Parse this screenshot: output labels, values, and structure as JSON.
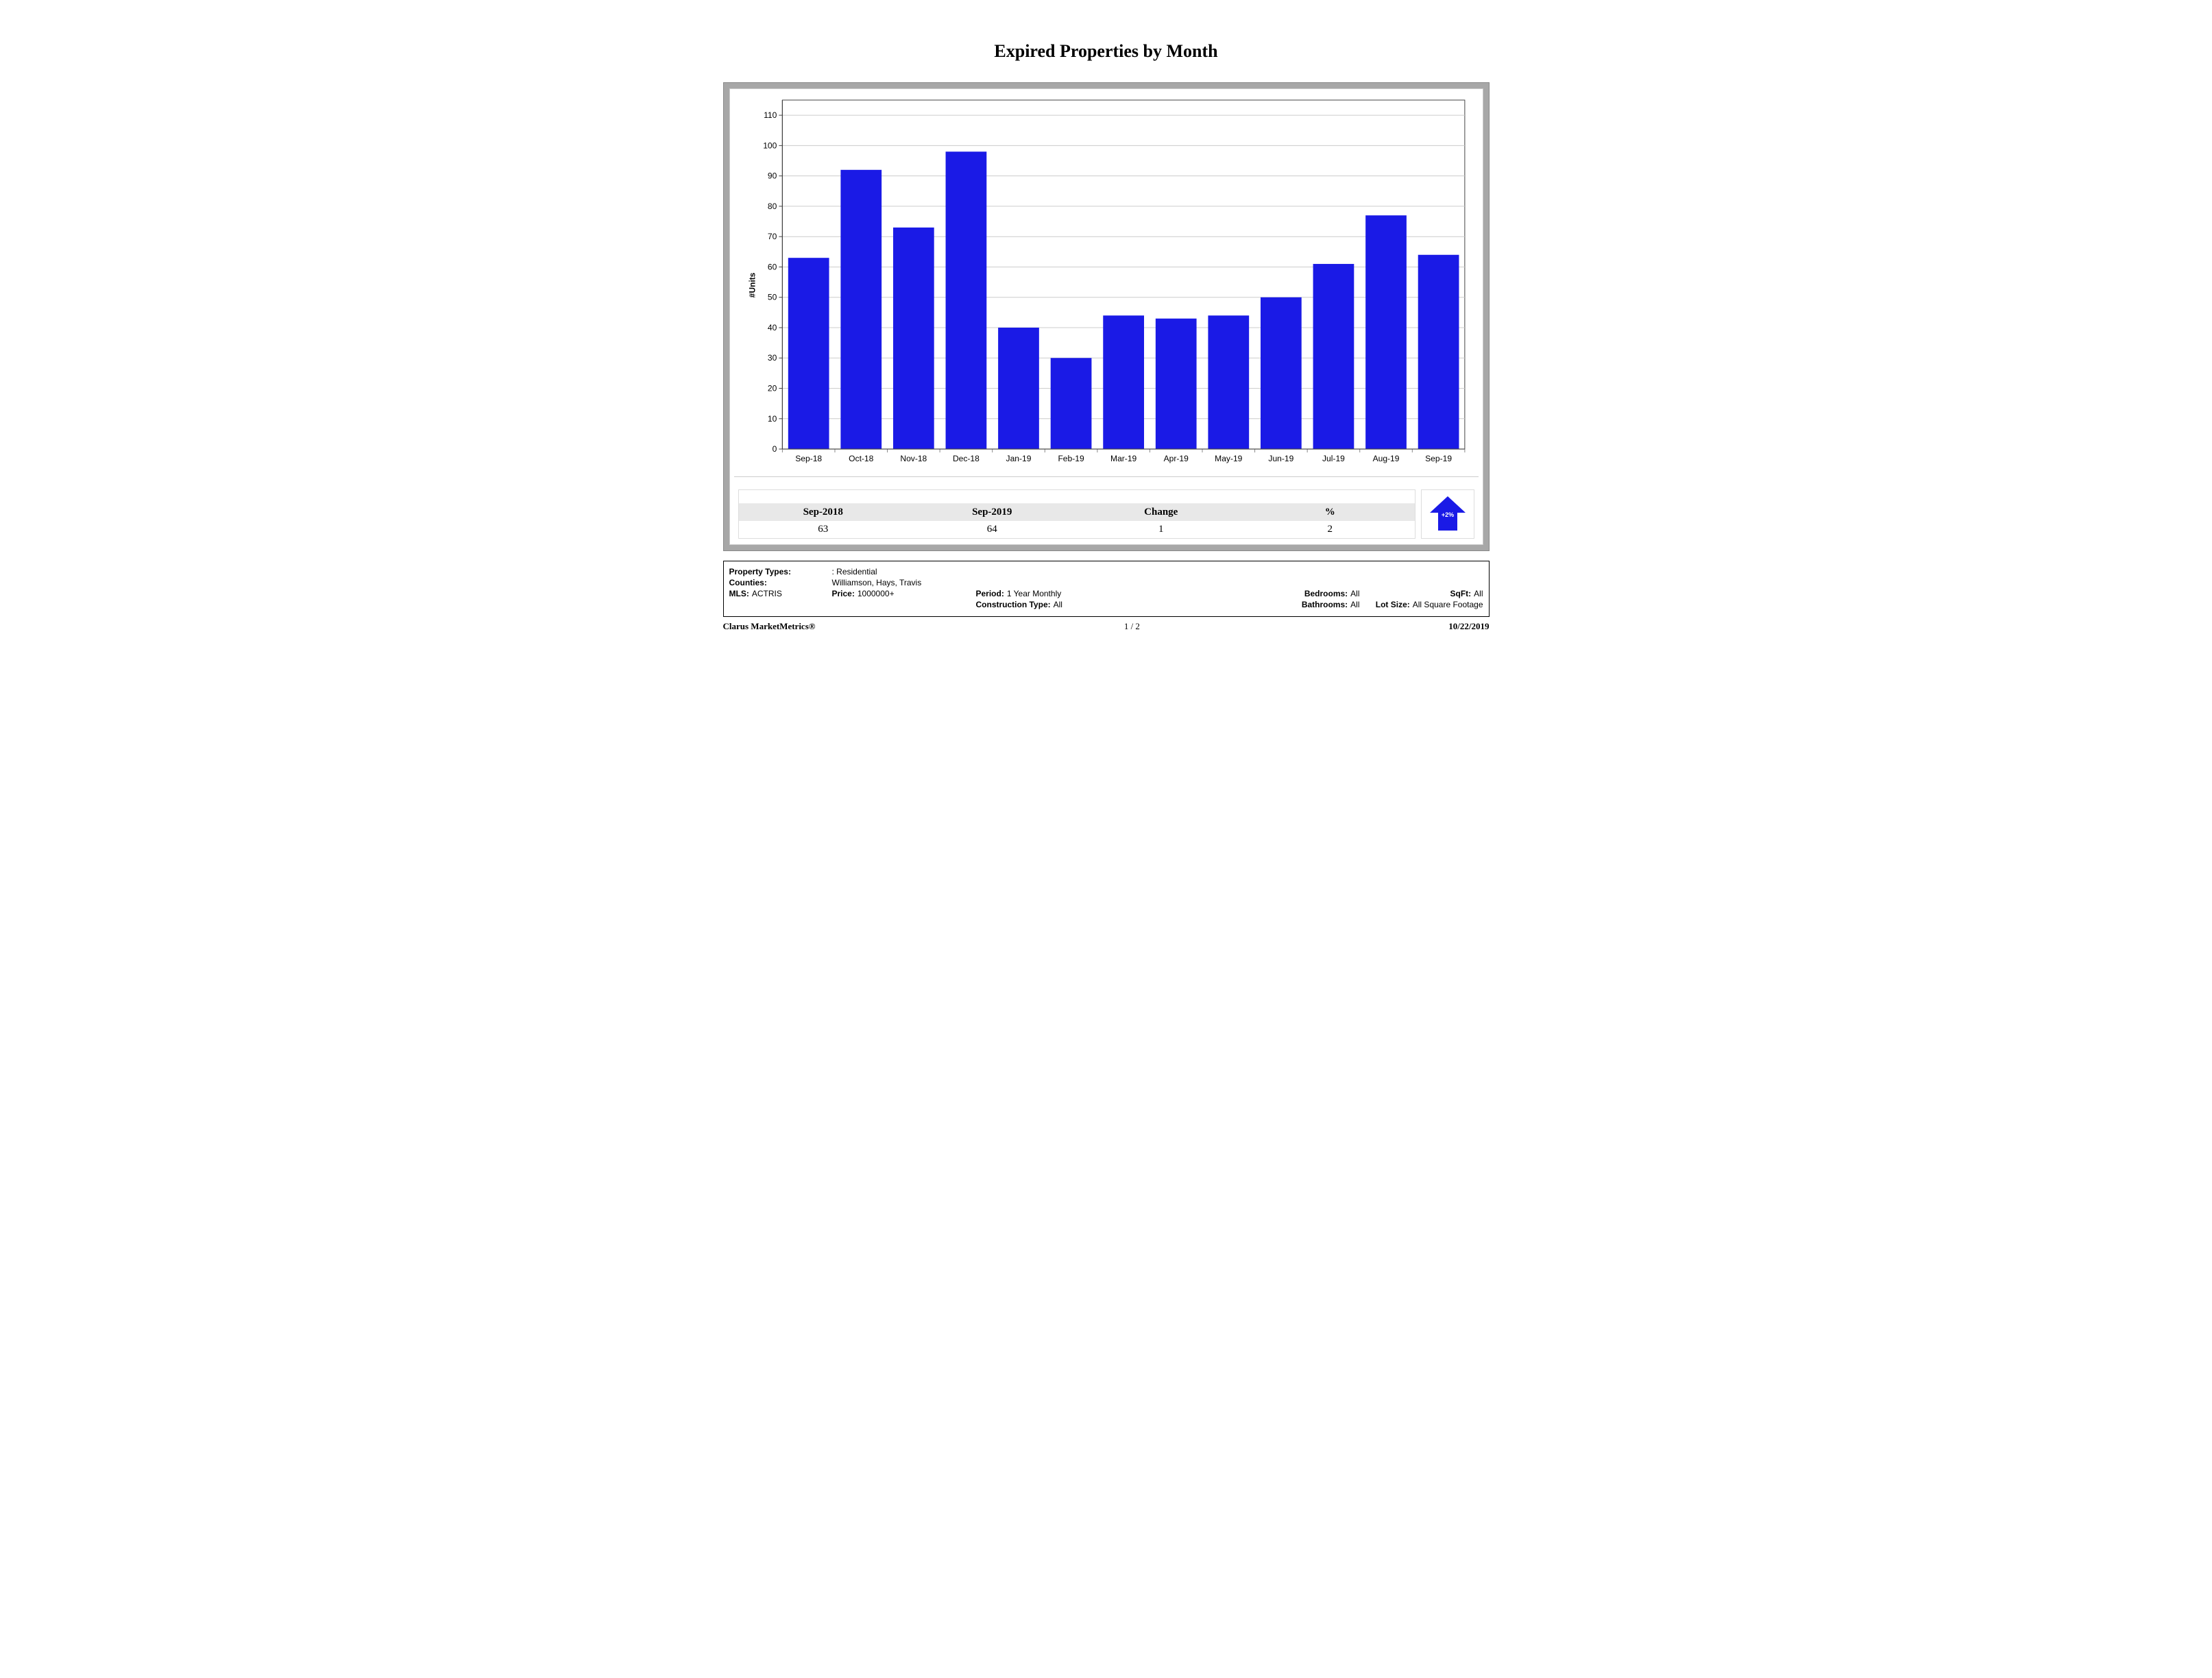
{
  "title": "Expired Properties by Month",
  "chart": {
    "type": "bar",
    "ylabel": "#Units",
    "categories": [
      "Sep-18",
      "Oct-18",
      "Nov-18",
      "Dec-18",
      "Jan-19",
      "Feb-19",
      "Mar-19",
      "Apr-19",
      "May-19",
      "Jun-19",
      "Jul-19",
      "Aug-19",
      "Sep-19"
    ],
    "values": [
      63,
      92,
      73,
      98,
      40,
      30,
      44,
      43,
      44,
      50,
      61,
      77,
      64
    ],
    "ylim": [
      0,
      115
    ],
    "ytick_step": 10,
    "ytick_max": 110,
    "bar_color": "#1a1ae6",
    "grid_color": "#cccccc",
    "axis_color": "#444444",
    "tick_minor_color": "#888888",
    "background_color": "#ffffff",
    "bar_width_ratio": 0.78,
    "axis_fontsize": 12,
    "axis_fontfamily": "Arial"
  },
  "summary": {
    "headers": [
      "Sep-2018",
      "Sep-2019",
      "Change",
      "%"
    ],
    "values": [
      "63",
      "64",
      "1",
      "2"
    ],
    "arrow": {
      "direction": "up",
      "label": "+2%",
      "fill": "#1a1ae6"
    }
  },
  "filters": {
    "property_types": {
      "label": "Property Types:",
      "value": ": Residential"
    },
    "counties": {
      "label": "Counties:",
      "value": "Williamson, Hays, Travis"
    },
    "mls": {
      "label": "MLS:",
      "value": "ACTRIS"
    },
    "price": {
      "label": "Price:",
      "value": "1000000+"
    },
    "period": {
      "label": "Period:",
      "value": "1 Year Monthly"
    },
    "bedrooms": {
      "label": "Bedrooms:",
      "value": "All"
    },
    "sqft": {
      "label": "SqFt:",
      "value": "All"
    },
    "construction_type": {
      "label": "Construction Type:",
      "value": "All"
    },
    "bathrooms": {
      "label": "Bathrooms:",
      "value": "All"
    },
    "lot_size": {
      "label": "Lot Size:",
      "value": "All Square Footage"
    }
  },
  "footer": {
    "left": "Clarus MarketMetrics®",
    "center": "1 / 2",
    "right": "10/22/2019"
  },
  "frame": {
    "outer_bg": "#a7a7a7",
    "inner_bg": "#ffffff"
  }
}
